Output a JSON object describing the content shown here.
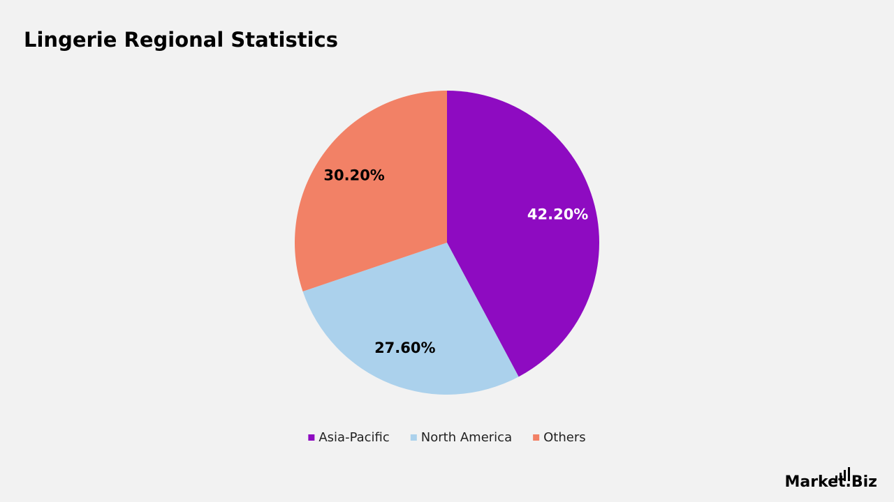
{
  "chart_data": {
    "type": "pie",
    "title": "Lingerie Regional Statistics",
    "categories": [
      "Asia-Pacific",
      "North America",
      "Others"
    ],
    "values": [
      42.2,
      27.6,
      30.2
    ],
    "value_labels": [
      "42.20%",
      "27.60%",
      "30.20%"
    ],
    "colors": [
      "#8e0bc1",
      "#abd1ec",
      "#f28166"
    ],
    "value_label_colors": [
      "#ffffff",
      "#000000",
      "#000000"
    ],
    "legend": "bottom"
  },
  "logo": "Market.Biz"
}
